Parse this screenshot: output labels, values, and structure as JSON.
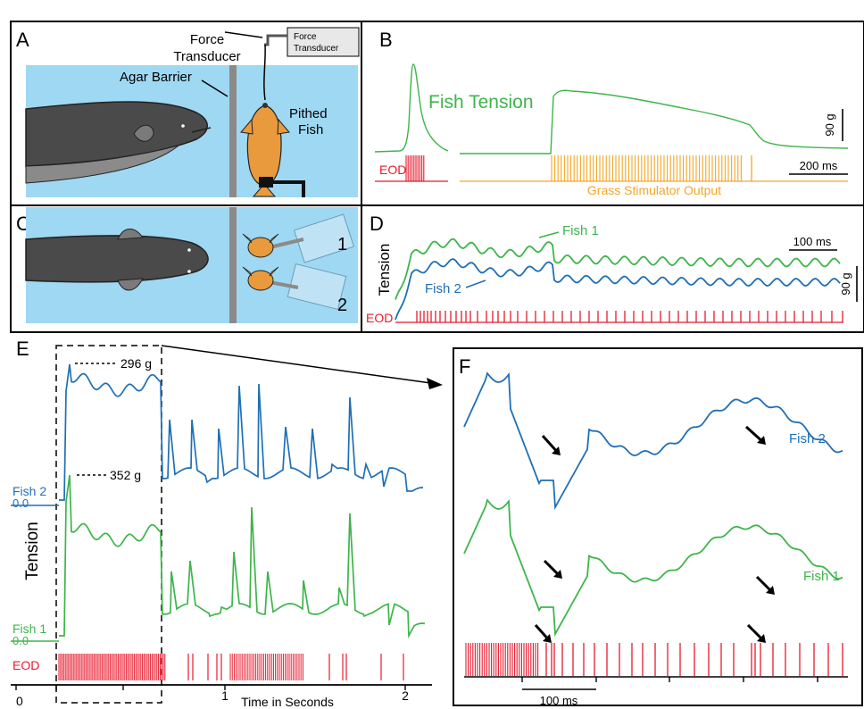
{
  "panels": {
    "A": {
      "letter": "A",
      "force_transducer_label_1": "Force",
      "force_transducer_label_2": "Transducer",
      "box_label_1": "Force",
      "box_label_2": "Transducer",
      "agar_barrier": "Agar Barrier",
      "pithed_fish_1": "Pithed",
      "pithed_fish_2": "Fish"
    },
    "B": {
      "letter": "B",
      "trace_label": "Fish Tension",
      "eod_label": "EOD",
      "stim_label": "Grass Stimulator Output",
      "scale_force": "90 g",
      "scale_time": "200 ms"
    },
    "C": {
      "letter": "C",
      "transducer_1": "1",
      "transducer_2": "2"
    },
    "D": {
      "letter": "D",
      "fish1_label": "Fish 1",
      "fish2_label": "Fish 2",
      "y_label": "Tension",
      "eod_label": "EOD",
      "scale_time": "100 ms",
      "scale_force": "90 g"
    },
    "E": {
      "letter": "E",
      "peak_fish2": "296 g",
      "peak_fish1": "352 g",
      "fish2_label": "Fish 2",
      "fish2_zero": "0.0",
      "fish1_label": "Fish 1",
      "fish1_zero": "0.0",
      "y_label": "Tension",
      "eod_label": "EOD",
      "x_label": "Time in Seconds",
      "x_ticks": [
        "0",
        "1",
        "2"
      ]
    },
    "F": {
      "letter": "F",
      "fish2_label": "Fish 2",
      "fish1_label": "Fish 1",
      "scale_time": "100 ms"
    }
  },
  "colors": {
    "fish1": "#3db54a",
    "fish2": "#1f6fb5",
    "eod": "#e8192c",
    "stim": "#f5a623",
    "water": "#9fd8f2",
    "agar": "#8c8a88",
    "eel": "#4a4a4a",
    "goldfish": "#e89a3c"
  }
}
